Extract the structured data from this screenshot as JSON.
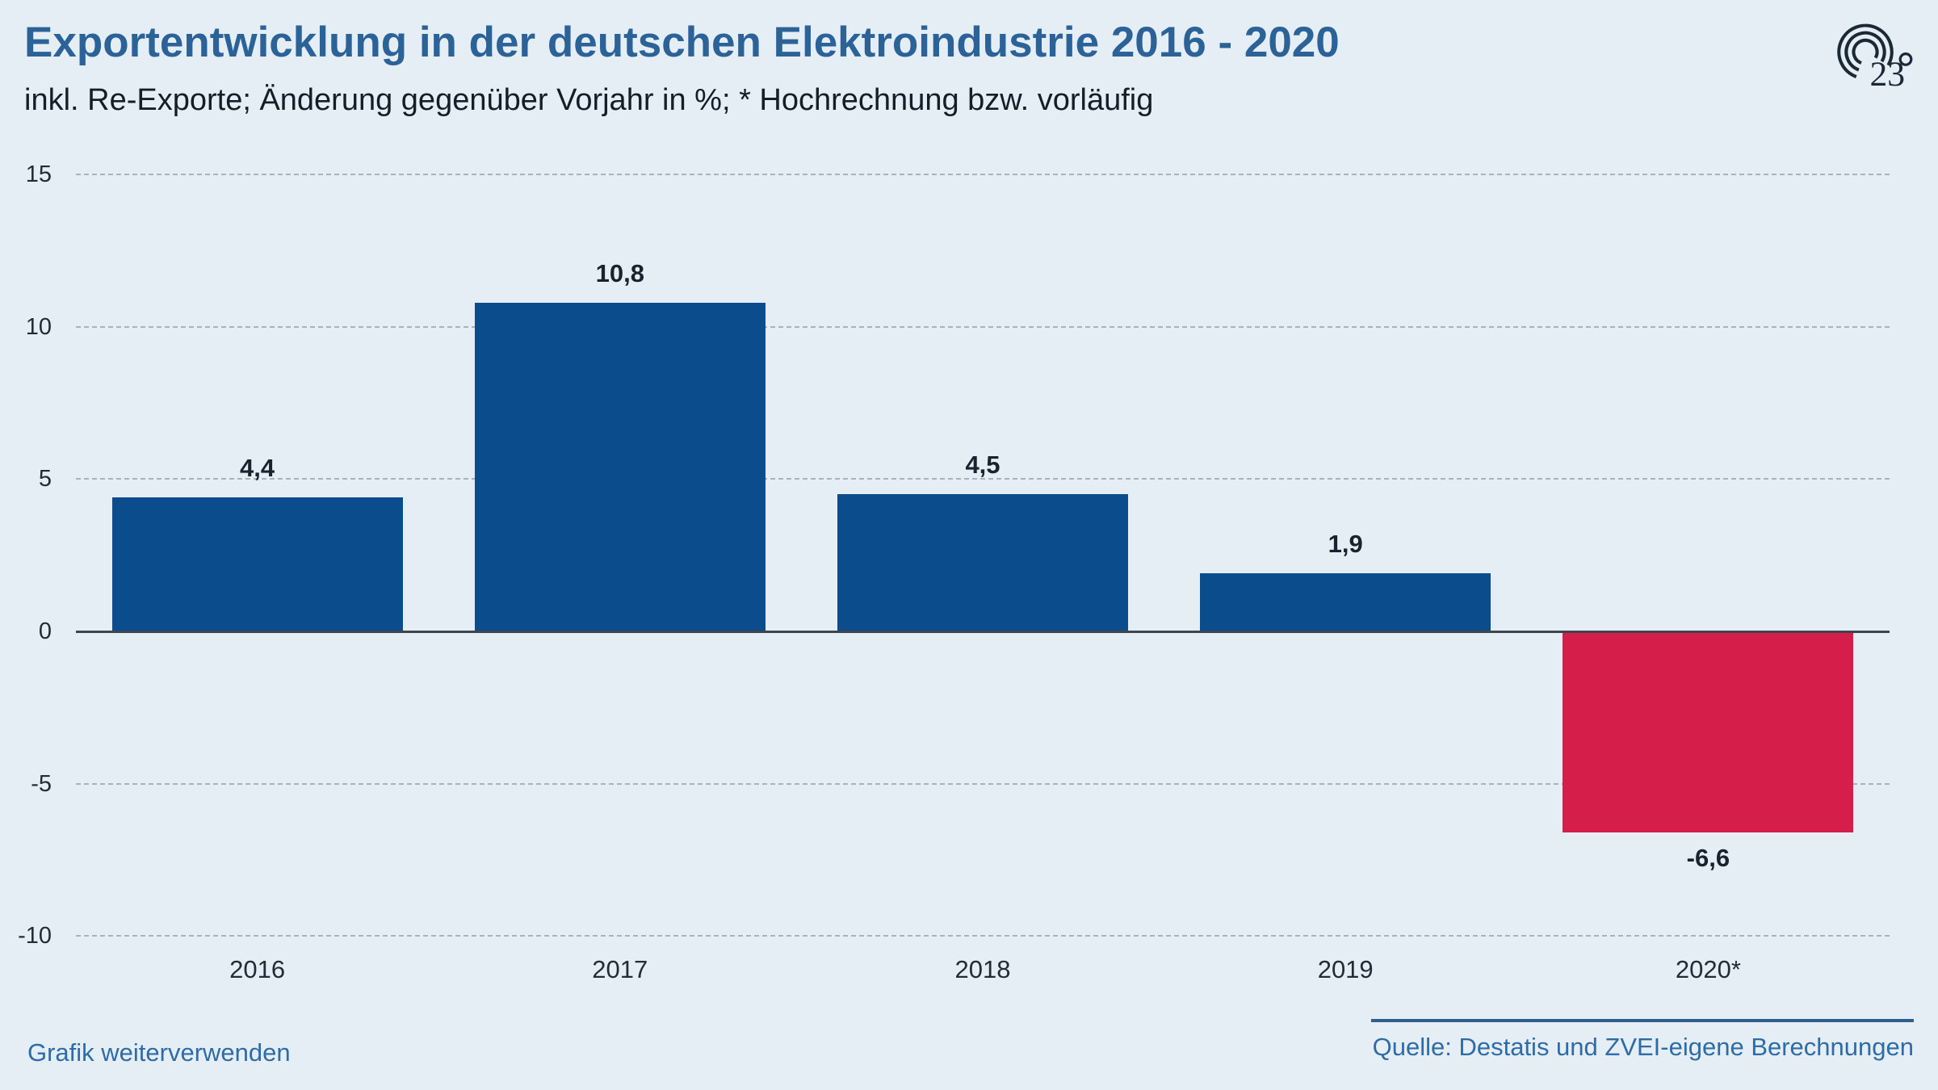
{
  "header": {
    "title": "Exportentwicklung in der deutschen Elektroindustrie 2016 - 2020",
    "subtitle": "inkl. Re-Exporte; Änderung gegenüber Vorjahr in %; * Hochrechnung bzw. vorläufig",
    "logo_text": "23",
    "logo_degree": "°"
  },
  "chart_data": {
    "type": "bar",
    "title": "Exportentwicklung in der deutschen Elektroindustrie 2016 - 2020",
    "subtitle": "inkl. Re-Exporte; Änderung gegenüber Vorjahr in %; * Hochrechnung bzw. vorläufig",
    "categories": [
      "2016",
      "2017",
      "2018",
      "2019",
      "2020*"
    ],
    "values": [
      4.4,
      10.8,
      4.5,
      1.9,
      -6.6
    ],
    "value_labels": [
      "4,4",
      "10,8",
      "4,5",
      "1,9",
      "-6,6"
    ],
    "bar_colors": [
      "#0b4c8c",
      "#0b4c8c",
      "#0b4c8c",
      "#0b4c8c",
      "#d51e49"
    ],
    "xlabel": "",
    "ylabel": "",
    "ylim": [
      -10,
      15
    ],
    "yticks": [
      {
        "value": 15,
        "label": "15"
      },
      {
        "value": 10,
        "label": "10"
      },
      {
        "value": 5,
        "label": "5"
      },
      {
        "value": 0,
        "label": "0"
      },
      {
        "value": -5,
        "label": "-5"
      },
      {
        "value": -10,
        "label": "-10"
      }
    ],
    "grid": "horizontal-dashed",
    "zero_line": true,
    "legend": "none"
  },
  "footer": {
    "reuse_label": "Grafik weiterverwenden",
    "source": "Quelle: Destatis und ZVEI-eigene Berechnungen"
  },
  "colors": {
    "background": "#e5eef5",
    "positive_bar": "#0b4c8c",
    "negative_bar": "#d51e49",
    "title_blue": "#2b6298",
    "link_blue": "#2e6ca7",
    "axis_text": "#222c36"
  }
}
